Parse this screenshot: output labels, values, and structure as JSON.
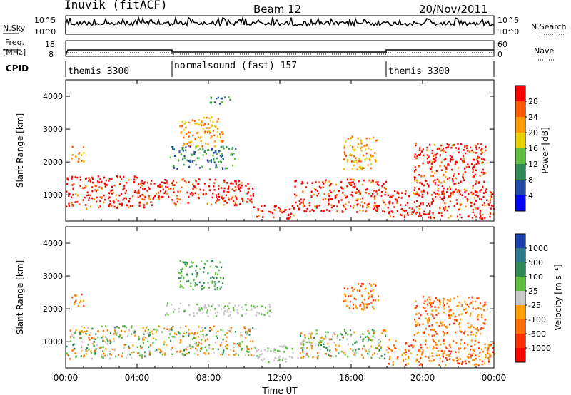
{
  "header": {
    "station": "Inuvik (fitACF)",
    "beam": "Beam 12",
    "date": "20/Nov/2011"
  },
  "nsky": {
    "label": "N.Sky",
    "ticks": [
      "10^5",
      "10^0"
    ],
    "right_label": "N.Search",
    "right_ticks": [
      "10^5",
      "10^0"
    ]
  },
  "freq": {
    "label_line1": "Freq.",
    "label_line2": "[MHz]",
    "ticks": [
      "18",
      "8"
    ],
    "right_label": "Nave",
    "right_ticks": [
      "60",
      "0"
    ]
  },
  "cpid": {
    "label": "CPID",
    "segments": [
      {
        "name": "themis 3300",
        "start": 0,
        "end": 6
      },
      {
        "name": "normalsound (fast) 157",
        "start": 6,
        "end": 18
      },
      {
        "name": "themis 3300",
        "start": 18,
        "end": 24
      }
    ]
  },
  "chart_data": [
    {
      "type": "heatmap",
      "name": "power",
      "ylabel": "Slant Range [km]",
      "yticks": [
        "1000",
        "2000",
        "3000",
        "4000"
      ],
      "ylim": [
        200,
        4500
      ],
      "xlim": [
        0,
        24
      ],
      "colorbar": {
        "label": "Power [dB]",
        "ticks": [
          "4",
          "8",
          "12",
          "16",
          "20",
          "24",
          "28"
        ],
        "colors": [
          "#0000ff",
          "#1f4aa8",
          "#2e8b57",
          "#5fbf3f",
          "#e8d000",
          "#ff9a00",
          "#ff5a00",
          "#ff0000"
        ]
      },
      "regions": [
        {
          "t0": 0.0,
          "t1": 4.5,
          "r0": 600,
          "r1": 1600,
          "level": "high"
        },
        {
          "t0": 4.5,
          "t1": 10.5,
          "r0": 700,
          "r1": 1500,
          "level": "high"
        },
        {
          "t0": 10.5,
          "t1": 12.8,
          "r0": 300,
          "r1": 700,
          "level": "high"
        },
        {
          "t0": 12.8,
          "t1": 18.0,
          "r0": 500,
          "r1": 1500,
          "level": "high"
        },
        {
          "t0": 18.0,
          "t1": 24.0,
          "r0": 300,
          "r1": 1200,
          "level": "high"
        },
        {
          "t0": 6.3,
          "t1": 8.8,
          "r0": 2500,
          "r1": 3400,
          "level": "mid"
        },
        {
          "t0": 5.8,
          "t1": 9.5,
          "r0": 1800,
          "r1": 2500,
          "level": "low"
        },
        {
          "t0": 19.5,
          "t1": 23.5,
          "r0": 1000,
          "r1": 2600,
          "level": "high"
        },
        {
          "t0": 0.3,
          "t1": 1.0,
          "r0": 2000,
          "r1": 2500,
          "level": "mid"
        },
        {
          "t0": 15.5,
          "t1": 17.5,
          "r0": 1800,
          "r1": 2800,
          "level": "mid"
        },
        {
          "t0": 7.5,
          "t1": 9.3,
          "r0": 3800,
          "r1": 4000,
          "level": "low"
        }
      ]
    },
    {
      "type": "heatmap",
      "name": "velocity",
      "xlabel": "Time UT",
      "ylabel": "Slant Range [km]",
      "yticks": [
        "1000",
        "2000",
        "3000",
        "4000"
      ],
      "xticks": [
        "00:00",
        "04:00",
        "08:00",
        "12:00",
        "16:00",
        "20:00",
        "00:00"
      ],
      "ylim": [
        200,
        4500
      ],
      "xlim": [
        0,
        24
      ],
      "colorbar": {
        "label": "Velocity [m s⁻¹]",
        "ticks": [
          "1000",
          "500",
          "100",
          "25",
          "-25",
          "-100",
          "-500",
          "-1000"
        ],
        "colors": [
          "#1a3fb0",
          "#2a7a8a",
          "#2e8b57",
          "#5fbf3f",
          "#c8c8c8",
          "#ffa000",
          "#ff7000",
          "#ff3000",
          "#ff0000"
        ]
      },
      "regions": [
        {
          "t0": 0.0,
          "t1": 4.5,
          "r0": 500,
          "r1": 1500,
          "level": "mixed"
        },
        {
          "t0": 4.5,
          "t1": 10.5,
          "r0": 600,
          "r1": 1500,
          "level": "mixed"
        },
        {
          "t0": 10.5,
          "t1": 13.0,
          "r0": 400,
          "r1": 900,
          "level": "gray"
        },
        {
          "t0": 13.0,
          "t1": 18.0,
          "r0": 500,
          "r1": 1400,
          "level": "mixed"
        },
        {
          "t0": 18.0,
          "t1": 24.0,
          "r0": 300,
          "r1": 1100,
          "level": "orange"
        },
        {
          "t0": 6.3,
          "t1": 8.8,
          "r0": 2600,
          "r1": 3500,
          "level": "green"
        },
        {
          "t0": 5.5,
          "t1": 11.5,
          "r0": 1800,
          "r1": 2200,
          "level": "gray"
        },
        {
          "t0": 19.5,
          "t1": 23.5,
          "r0": 1200,
          "r1": 2400,
          "level": "orange"
        },
        {
          "t0": 0.3,
          "t1": 1.0,
          "r0": 2100,
          "r1": 2500,
          "level": "orange"
        },
        {
          "t0": 15.5,
          "t1": 17.5,
          "r0": 2000,
          "r1": 2800,
          "level": "orange"
        }
      ]
    }
  ]
}
